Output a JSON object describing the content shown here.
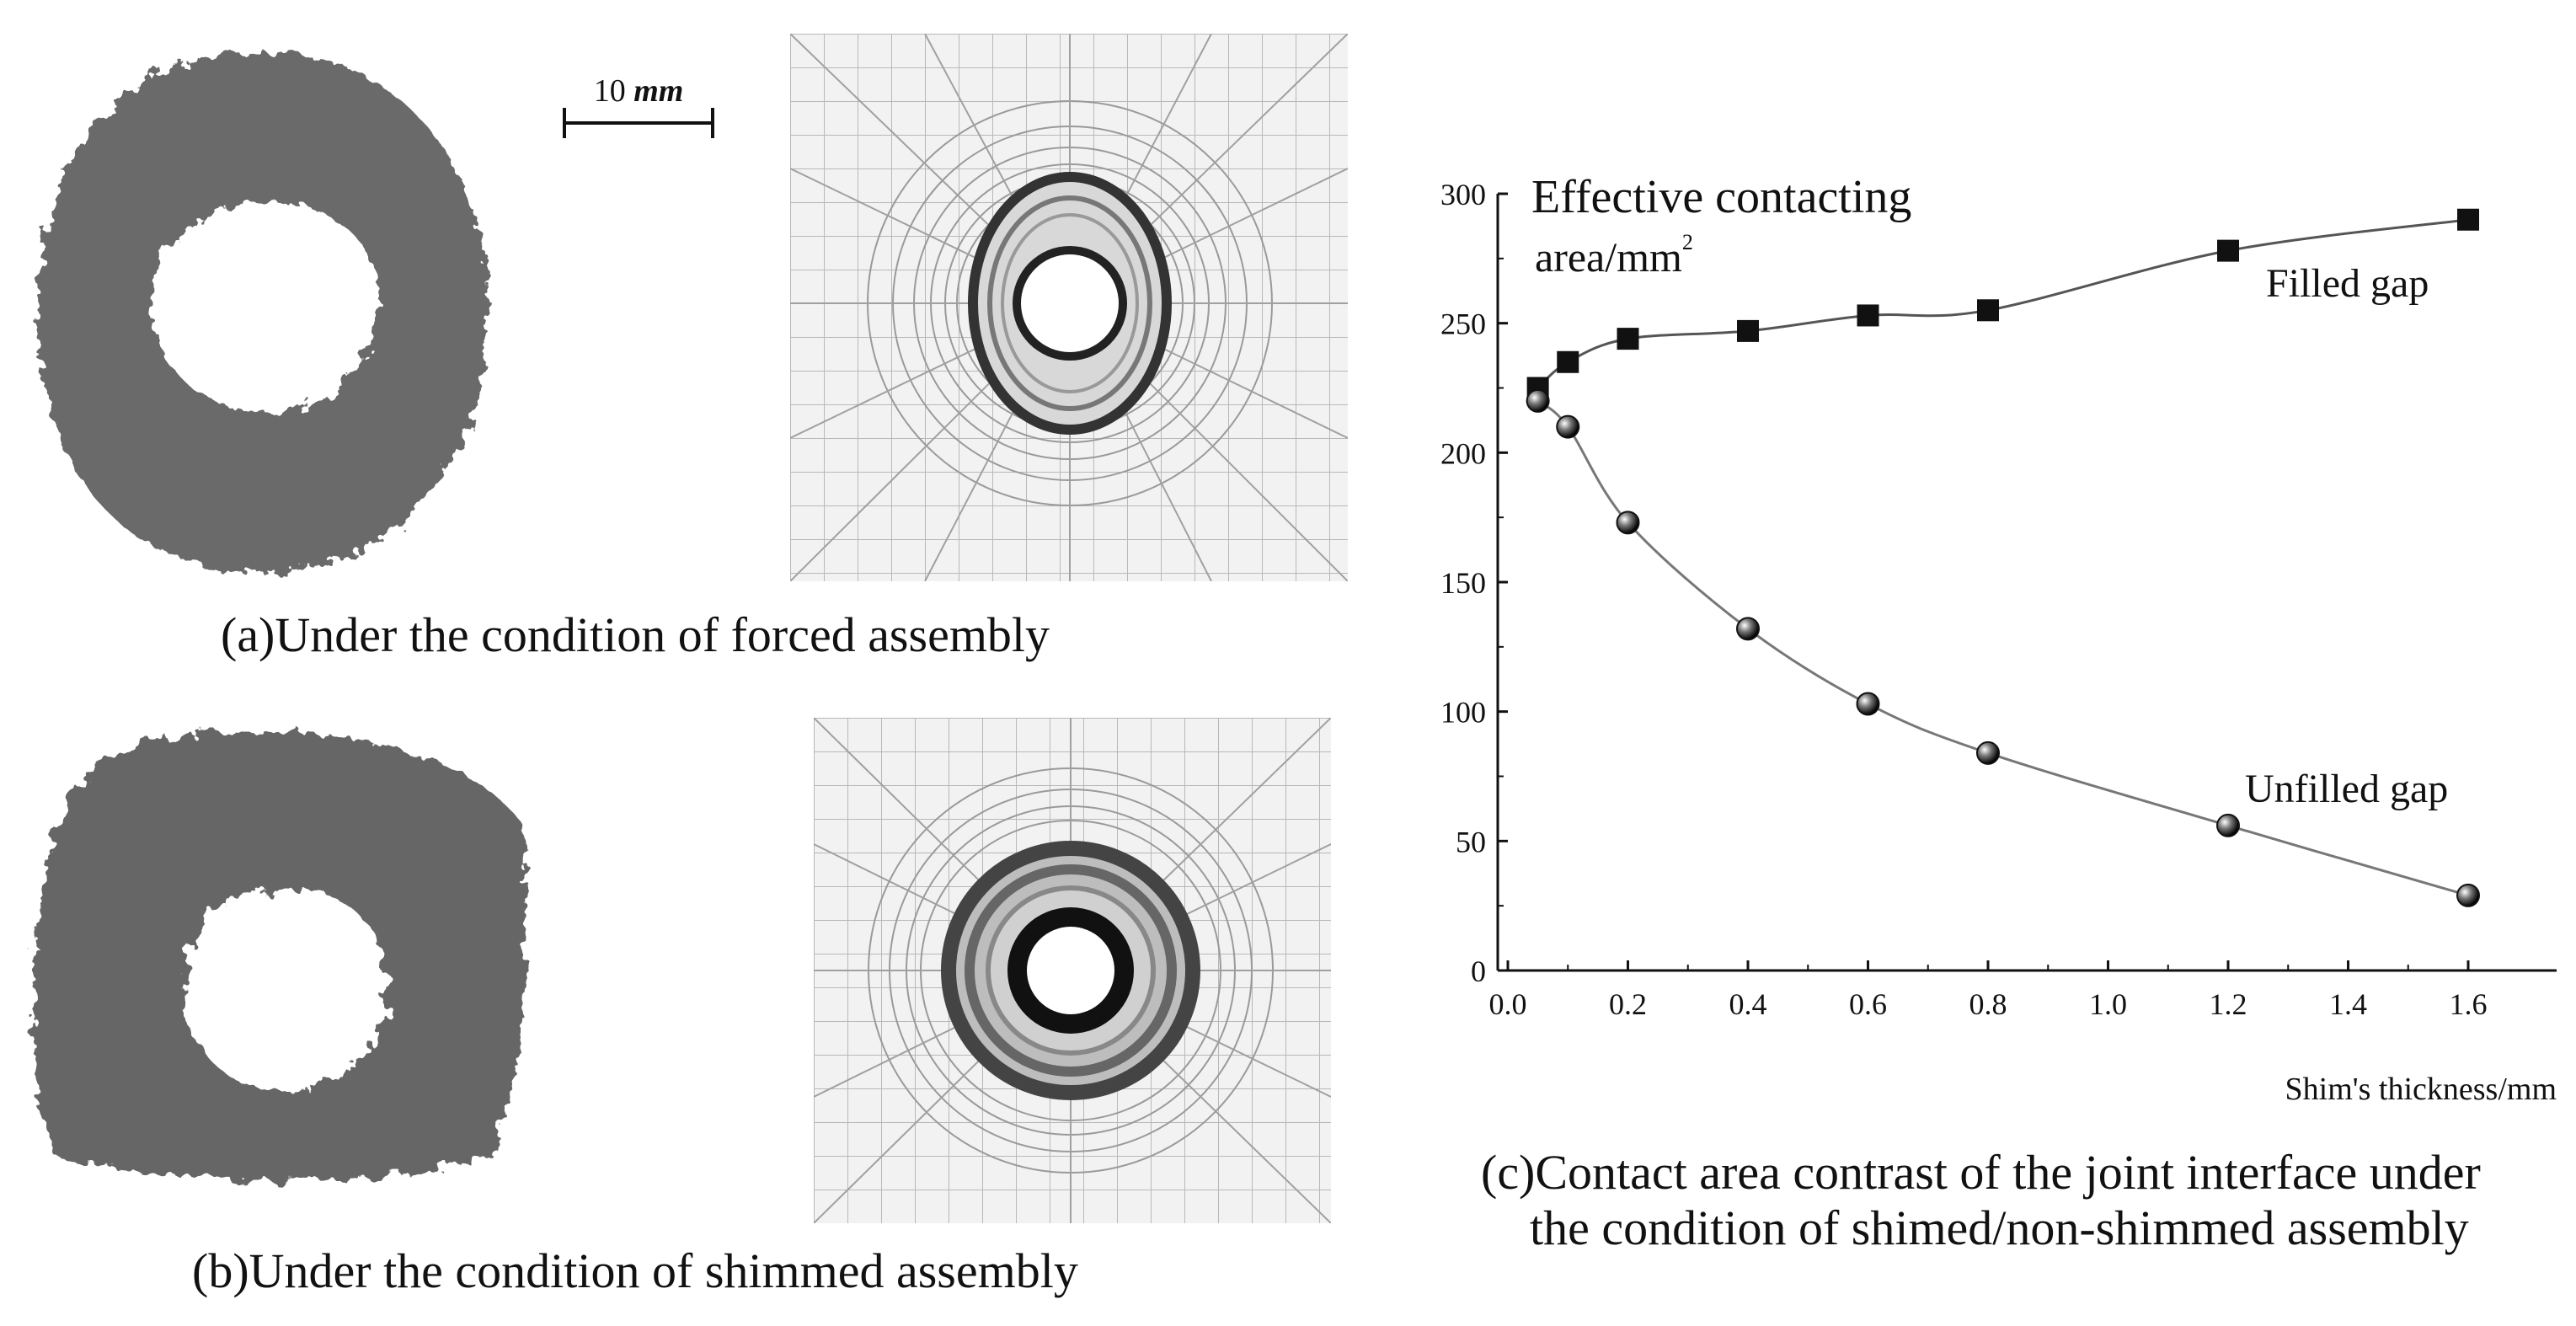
{
  "scale_bar": {
    "value": "10",
    "unit": "mm"
  },
  "panel_a": {
    "caption": "(a)Under the condition of forced assembly"
  },
  "panel_b": {
    "caption": "(b)Under the condition of shimmed assembly"
  },
  "panel_c": {
    "caption_line1": "(c)Contact area contrast of the joint interface under",
    "caption_line2": "the condition of shimed/non-shimmed assembly"
  },
  "chart_data": {
    "type": "line",
    "ylabel_line1": "Effective contacting",
    "ylabel_line2": "area/mm",
    "ylabel_superscript": "2",
    "xlabel": "Shim's thickness/mm",
    "xlim": [
      0.0,
      1.7
    ],
    "ylim": [
      0,
      300
    ],
    "xticks": [
      "0.0",
      "0.2",
      "0.4",
      "0.6",
      "0.8",
      "1.0",
      "1.2",
      "1.4",
      "1.6"
    ],
    "yticks": [
      "0",
      "50",
      "100",
      "150",
      "200",
      "250",
      "300"
    ],
    "grid": false,
    "series": [
      {
        "name": "Filled gap",
        "marker": "square",
        "x": [
          0.05,
          0.1,
          0.2,
          0.4,
          0.6,
          0.8,
          1.2,
          1.6
        ],
        "values": [
          225,
          235,
          244,
          247,
          253,
          255,
          278,
          290
        ]
      },
      {
        "name": "Unfilled gap",
        "marker": "sphere",
        "x": [
          0.05,
          0.1,
          0.2,
          0.4,
          0.6,
          0.8,
          1.2,
          1.6
        ],
        "values": [
          220,
          210,
          173,
          132,
          103,
          84,
          56,
          29
        ]
      }
    ]
  }
}
